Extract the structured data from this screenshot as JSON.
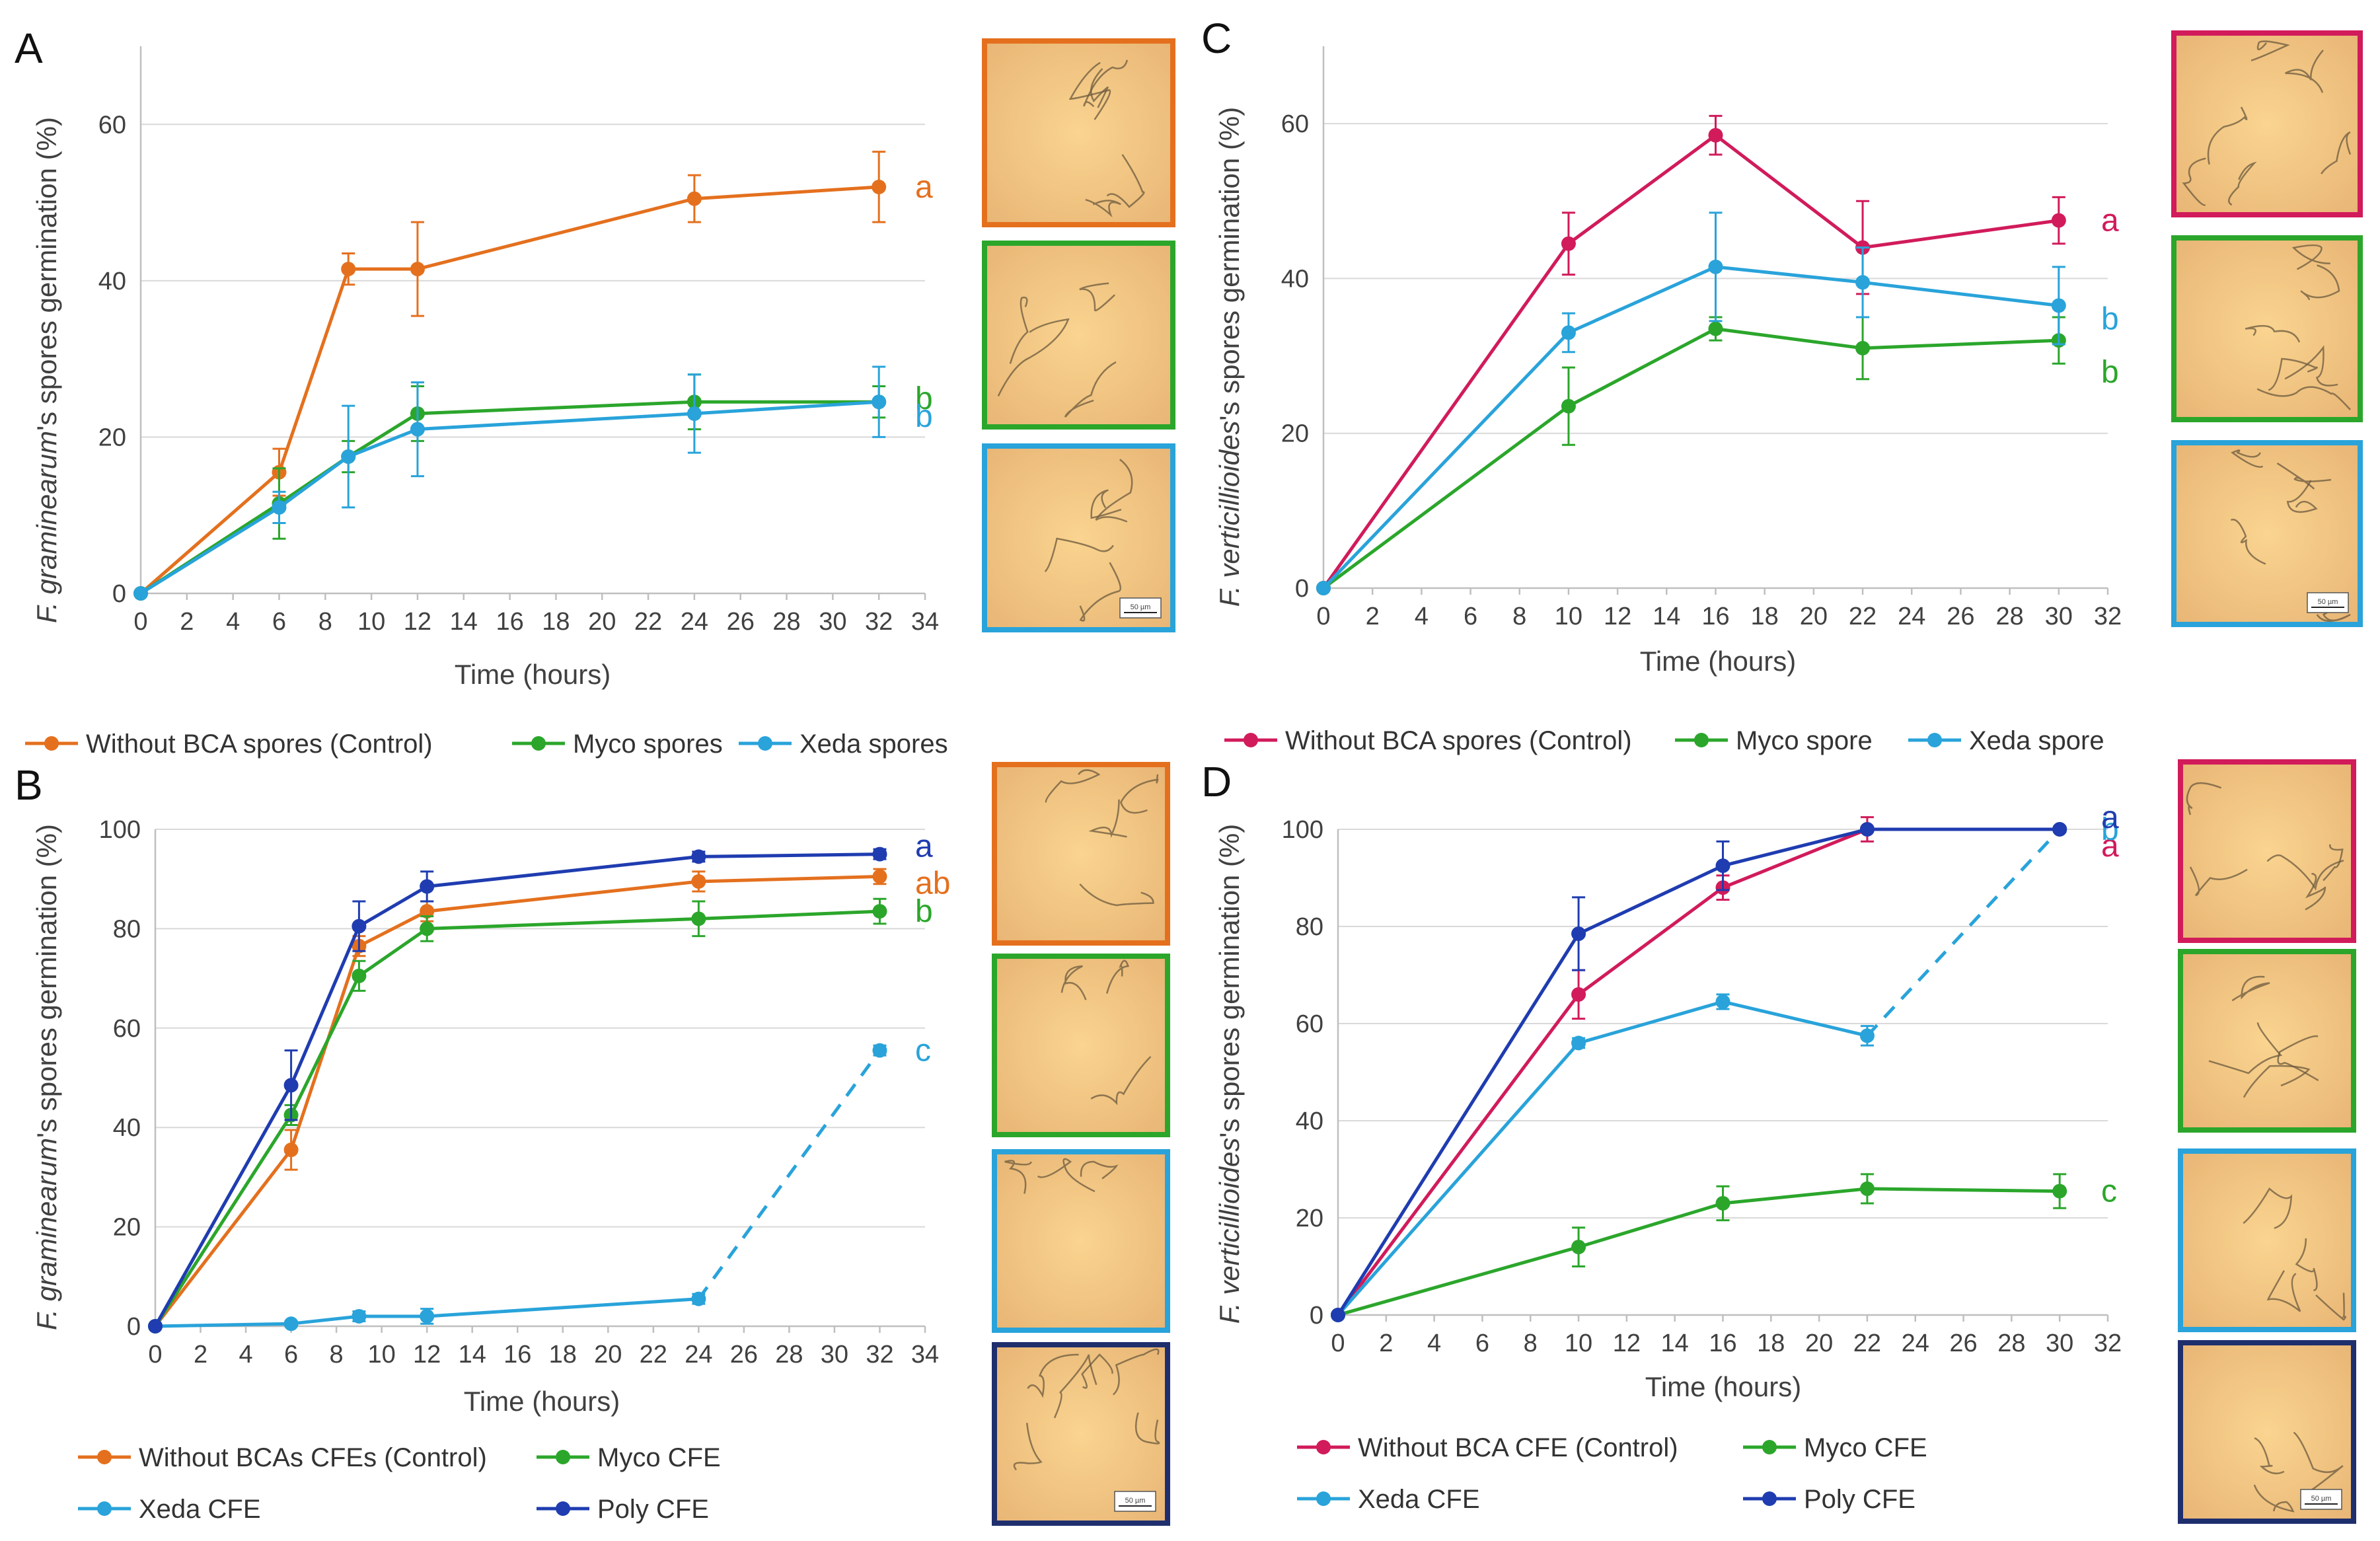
{
  "figure": {
    "panels": [
      "A",
      "B",
      "C",
      "D"
    ]
  },
  "chart_data": [
    {
      "panel": "A",
      "type": "line",
      "xlabel": "Time (hours)",
      "ylabel": "F. graminearum's spores germination (%)",
      "xlim": [
        0,
        34
      ],
      "xticks": [
        0,
        2,
        4,
        6,
        8,
        10,
        12,
        14,
        16,
        18,
        20,
        22,
        24,
        26,
        28,
        30,
        32,
        34
      ],
      "ylim": [
        0,
        70
      ],
      "yticks": [
        0,
        20,
        40,
        60
      ],
      "series": [
        {
          "name": "Without BCA spores (Control)",
          "color": "#E4701E",
          "x": [
            0,
            6,
            9,
            12,
            24,
            32
          ],
          "values": [
            0,
            15.5,
            41.5,
            41.5,
            50.5,
            52
          ],
          "err": [
            0,
            3,
            2,
            6,
            3,
            4.5
          ],
          "sig": "a",
          "dashed_from": null
        },
        {
          "name": "Myco spores",
          "color": "#2BA62B",
          "x": [
            0,
            6,
            9,
            12,
            24,
            32
          ],
          "values": [
            0,
            11.5,
            17.5,
            23,
            24.5,
            24.5
          ],
          "err": [
            0,
            4.5,
            2,
            3.5,
            3.5,
            2
          ],
          "sig": "b",
          "dashed_from": null
        },
        {
          "name": "Xeda spores",
          "color": "#29A3DA",
          "x": [
            0,
            6,
            9,
            12,
            24,
            32
          ],
          "values": [
            0,
            11,
            17.5,
            21,
            23,
            24.5
          ],
          "err": [
            0,
            2,
            6.5,
            6,
            5,
            4.5
          ],
          "sig": "b",
          "dashed_from": null
        }
      ],
      "images": [
        {
          "border": "#E4701E",
          "alt": "control micrograph"
        },
        {
          "border": "#2BA62B",
          "alt": "myco micrograph"
        },
        {
          "border": "#29A3DA",
          "alt": "xeda micrograph",
          "scale_bar": "50 µm"
        }
      ]
    },
    {
      "panel": "B",
      "type": "line",
      "xlabel": "Time (hours)",
      "ylabel": "F. graminearum's spores germination (%)",
      "xlim": [
        0,
        34
      ],
      "xticks": [
        0,
        2,
        4,
        6,
        8,
        10,
        12,
        14,
        16,
        18,
        20,
        22,
        24,
        26,
        28,
        30,
        32,
        34
      ],
      "ylim": [
        0,
        100
      ],
      "yticks": [
        0,
        20,
        40,
        60,
        80,
        100
      ],
      "series": [
        {
          "name": "Without BCAs CFEs (Control)",
          "color": "#E4701E",
          "x": [
            0,
            6,
            9,
            12,
            24,
            32
          ],
          "values": [
            0,
            35.5,
            76.5,
            83.5,
            89.5,
            90.5
          ],
          "err": [
            0,
            4,
            2,
            2,
            2,
            1.5
          ],
          "sig": "ab",
          "dashed_from": null
        },
        {
          "name": "Myco CFE",
          "color": "#2BA62B",
          "x": [
            0,
            6,
            9,
            12,
            24,
            32
          ],
          "values": [
            0,
            42.5,
            70.5,
            80,
            82,
            83.5
          ],
          "err": [
            0,
            2,
            3,
            2.5,
            3.5,
            2.5
          ],
          "sig": "b",
          "dashed_from": null
        },
        {
          "name": "Xeda CFE",
          "color": "#29A3DA",
          "x": [
            0,
            6,
            9,
            12,
            24,
            32
          ],
          "values": [
            0,
            0.5,
            2,
            2,
            5.5,
            55.5
          ],
          "err": [
            0,
            0.5,
            1,
            1.5,
            1,
            1
          ],
          "sig": "c",
          "dashed_from": 4
        },
        {
          "name": "Poly CFE",
          "color": "#1F3CB0",
          "x": [
            0,
            6,
            9,
            12,
            24,
            32
          ],
          "values": [
            0,
            48.5,
            80.5,
            88.5,
            94.5,
            95
          ],
          "err": [
            0,
            7,
            5,
            3,
            1,
            1
          ],
          "sig": "a",
          "dashed_from": null
        }
      ],
      "images": [
        {
          "border": "#E4701E",
          "alt": "control micrograph"
        },
        {
          "border": "#2BA62B",
          "alt": "myco micrograph"
        },
        {
          "border": "#29A3DA",
          "alt": "xeda micrograph"
        },
        {
          "border": "#1F2F6E",
          "alt": "poly micrograph",
          "scale_bar": "50 µm"
        }
      ]
    },
    {
      "panel": "C",
      "type": "line",
      "xlabel": "Time (hours)",
      "ylabel": "F. verticillioides's spores germination (%)",
      "xlim": [
        0,
        32
      ],
      "xticks": [
        0,
        2,
        4,
        6,
        8,
        10,
        12,
        14,
        16,
        18,
        20,
        22,
        24,
        26,
        28,
        30,
        32
      ],
      "ylim": [
        0,
        70
      ],
      "yticks": [
        0,
        20,
        40,
        60
      ],
      "series": [
        {
          "name": "Without BCA spores (Control)",
          "color": "#D11B5B",
          "x": [
            0,
            10,
            16,
            22,
            30
          ],
          "values": [
            0,
            44.5,
            58.5,
            44,
            47.5
          ],
          "err": [
            0,
            4,
            2.5,
            6,
            3
          ],
          "sig": "a",
          "dashed_from": null
        },
        {
          "name": "Myco spore",
          "color": "#2BA62B",
          "x": [
            0,
            10,
            16,
            22,
            30
          ],
          "values": [
            0,
            23.5,
            33.5,
            31,
            32
          ],
          "err": [
            0,
            5,
            1.5,
            4,
            3
          ],
          "sig": "b",
          "dashed_from": null
        },
        {
          "name": "Xeda spore",
          "color": "#29A3DA",
          "x": [
            0,
            10,
            16,
            22,
            30
          ],
          "values": [
            0,
            33,
            41.5,
            39.5,
            36.5
          ],
          "err": [
            0,
            2.5,
            7,
            4.5,
            5
          ],
          "sig": "b",
          "dashed_from": null
        }
      ],
      "images": [
        {
          "border": "#D11B5B",
          "alt": "control micrograph"
        },
        {
          "border": "#2BA62B",
          "alt": "myco micrograph"
        },
        {
          "border": "#29A3DA",
          "alt": "xeda micrograph",
          "scale_bar": "50 µm"
        }
      ]
    },
    {
      "panel": "D",
      "type": "line",
      "xlabel": "Time (hours)",
      "ylabel": "F. verticillioides's spores germination (%)",
      "xlim": [
        0,
        32
      ],
      "xticks": [
        0,
        2,
        4,
        6,
        8,
        10,
        12,
        14,
        16,
        18,
        20,
        22,
        24,
        26,
        28,
        30,
        32
      ],
      "ylim": [
        0,
        100
      ],
      "yticks": [
        0,
        20,
        40,
        60,
        80,
        100
      ],
      "series": [
        {
          "name": "Without BCA CFE (Control)",
          "color": "#D11B5B",
          "x": [
            0,
            10,
            16,
            22,
            30
          ],
          "values": [
            0,
            66,
            88,
            100,
            100
          ],
          "err": [
            0,
            5,
            2.5,
            2.5,
            0.5
          ],
          "sig": "a",
          "dashed_from": null
        },
        {
          "name": "Myco CFE",
          "color": "#2BA62B",
          "x": [
            0,
            10,
            16,
            22,
            30
          ],
          "values": [
            0,
            14,
            23,
            26,
            25.5
          ],
          "err": [
            0,
            4,
            3.5,
            3,
            3.5
          ],
          "sig": "c",
          "dashed_from": null
        },
        {
          "name": "Xeda CFE",
          "color": "#29A3DA",
          "x": [
            0,
            10,
            16,
            22,
            30
          ],
          "values": [
            0,
            56,
            64.5,
            57.5,
            100
          ],
          "err": [
            0,
            1,
            1.5,
            2,
            0.5
          ],
          "sig": "b",
          "dashed_from": 3
        },
        {
          "name": "Poly CFE",
          "color": "#1F3CB0",
          "x": [
            0,
            10,
            16,
            22,
            30
          ],
          "values": [
            0,
            78.5,
            92.5,
            100,
            100
          ],
          "err": [
            0,
            7.5,
            5,
            0.5,
            0.5
          ],
          "sig": "a",
          "dashed_from": null
        }
      ],
      "images": [
        {
          "border": "#D11B5B",
          "alt": "control micrograph"
        },
        {
          "border": "#2BA62B",
          "alt": "myco micrograph"
        },
        {
          "border": "#29A3DA",
          "alt": "xeda micrograph"
        },
        {
          "border": "#1F2F6E",
          "alt": "poly micrograph",
          "scale_bar": "50 µm"
        }
      ]
    }
  ]
}
